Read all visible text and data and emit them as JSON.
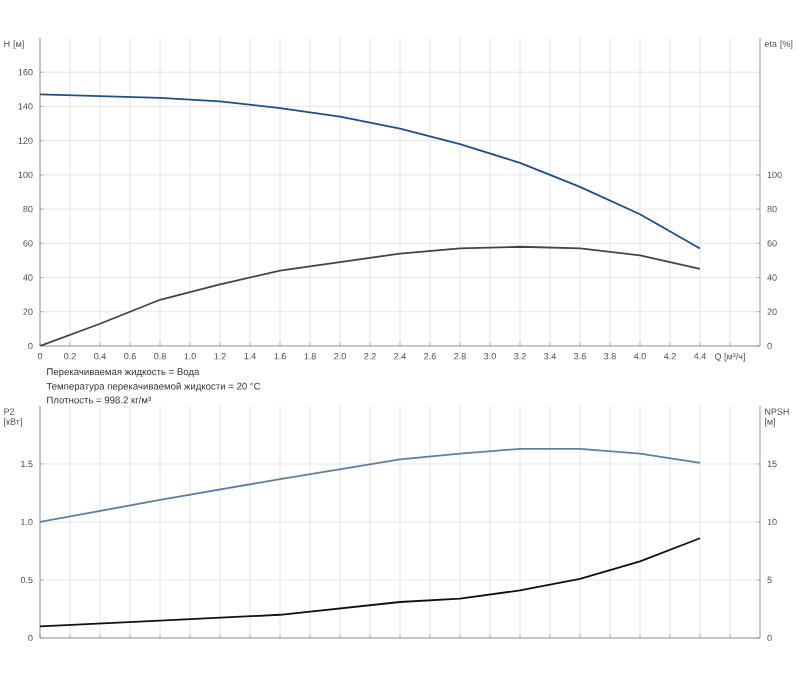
{
  "chart_data": [
    {
      "type": "line",
      "ylabel": "H [м]",
      "y2label": "eta [%]",
      "x": [
        0,
        0.4,
        0.8,
        1.2,
        1.6,
        2.0,
        2.4,
        2.8,
        3.2,
        3.6,
        4.0,
        4.4
      ],
      "series": [
        {
          "color": "#1f4e8c",
          "values": [
            147,
            146,
            145,
            143,
            139,
            134,
            127,
            118,
            107,
            93,
            77,
            57
          ]
        },
        {
          "color": "#444444",
          "axis": "y2",
          "values": [
            0,
            13,
            27,
            36,
            44,
            49,
            54,
            57,
            58,
            57,
            53,
            45
          ]
        }
      ],
      "xlim": [
        0,
        4.8
      ],
      "xticks": [
        0,
        0.2,
        0.4,
        0.6,
        0.8,
        {
          "value": 1,
          "label": "1.0"
        },
        1.2,
        1.4,
        1.6,
        1.8,
        {
          "value": 2,
          "label": "2.0"
        },
        2.2,
        2.4,
        2.6,
        2.8,
        {
          "value": 3,
          "label": "3.0"
        },
        3.2,
        3.4,
        3.6,
        3.8,
        {
          "value": 4,
          "label": "4.0"
        },
        4.2,
        4.4,
        {
          "value": 4.6,
          "label": "Q [м³/ч]"
        }
      ],
      "ylim": [
        0,
        180
      ],
      "yticks": [
        0,
        20,
        40,
        60,
        80,
        100,
        120,
        140,
        160
      ],
      "y2lim": [
        0,
        180
      ],
      "y2ticks": [
        0,
        20,
        40,
        60,
        80,
        100
      ],
      "grid": true,
      "annotations": [
        "Перекачиваемая жидкость = Вода",
        "Температура перекачиваемой жидкости = 20 °C",
        "Плотность = 998.2 кг/м³"
      ]
    },
    {
      "type": "line",
      "ylabel": "P2 [кВт]",
      "y2label": "NPSH [м]",
      "x": [
        0,
        0.8,
        1.6,
        2.4,
        2.8,
        3.2,
        3.6,
        4.0,
        4.4
      ],
      "series": [
        {
          "color": "#5b7fa6",
          "values": [
            1.0,
            1.19,
            1.37,
            1.54,
            1.59,
            1.63,
            1.63,
            1.59,
            1.51
          ]
        },
        {
          "color": "#111111",
          "axis": "y2",
          "values": [
            1.0,
            1.5,
            2.0,
            3.1,
            3.4,
            4.1,
            5.1,
            6.6,
            8.6
          ]
        }
      ],
      "xlim": [
        0,
        4.8
      ],
      "xticks": [
        0,
        0.2,
        0.4,
        0.6,
        0.8,
        1.0,
        1.2,
        1.4,
        1.6,
        1.8,
        2.0,
        2.2,
        2.4,
        2.6,
        2.8,
        3.0,
        3.2,
        3.4,
        3.6,
        3.8,
        4.0,
        4.2,
        4.4,
        4.6
      ],
      "ylim": [
        0,
        2.0
      ],
      "yticks": [
        0,
        0.5,
        {
          "value": 1,
          "label": "1.0"
        },
        1.5
      ],
      "y2lim": [
        0,
        20
      ],
      "y2ticks": [
        0,
        5,
        10,
        15
      ],
      "grid": true,
      "tick_labels": "y"
    }
  ]
}
